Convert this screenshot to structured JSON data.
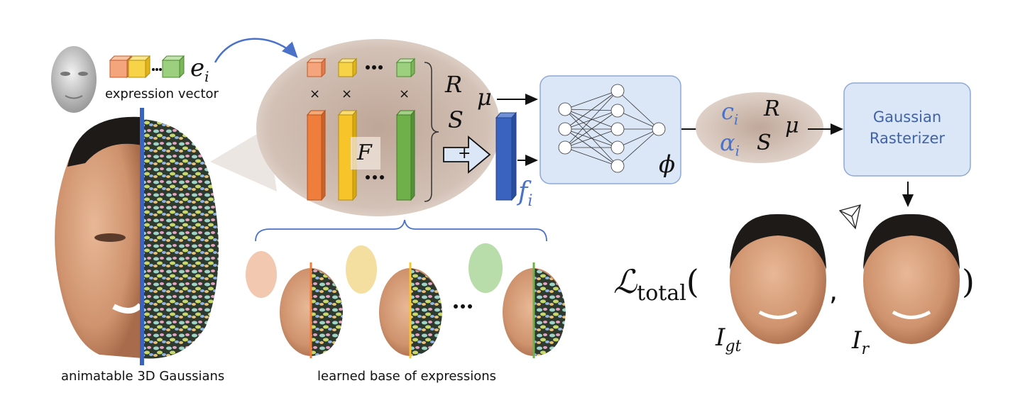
{
  "symbols": {
    "e_i": "e",
    "e_i_sub": "i",
    "R": "R",
    "S": "S",
    "mu": "μ",
    "F": "F",
    "plus": "+",
    "times": "×",
    "f_i": "f",
    "f_i_sub": "i",
    "phi": "ϕ",
    "c_i": "c",
    "c_i_sub": "i",
    "alpha_i": "α",
    "alpha_i_sub": "i",
    "R2": "R",
    "S2": "S",
    "mu2": "μ"
  },
  "labels": {
    "expression_vector": "expression vector",
    "animatable": "animatable 3D Gaussians",
    "learned_base": "learned base of expressions",
    "rasterizer_line1": "Gaussian",
    "rasterizer_line2": "Rasterizer"
  },
  "loss": {
    "L": "ℒ",
    "sub": "total",
    "open": "(",
    "comma": ",",
    "close": ")",
    "I_gt": "I",
    "I_gt_sub": "gt",
    "I_r": "I",
    "I_r_sub": "r"
  },
  "colors": {
    "orange": "#ef7e3c",
    "yellow": "#f7c52a",
    "green": "#6fb04a",
    "blue": "#3a63c0",
    "ellipse": "#cdb7aa",
    "mlp_box": "#dbe6f6"
  }
}
